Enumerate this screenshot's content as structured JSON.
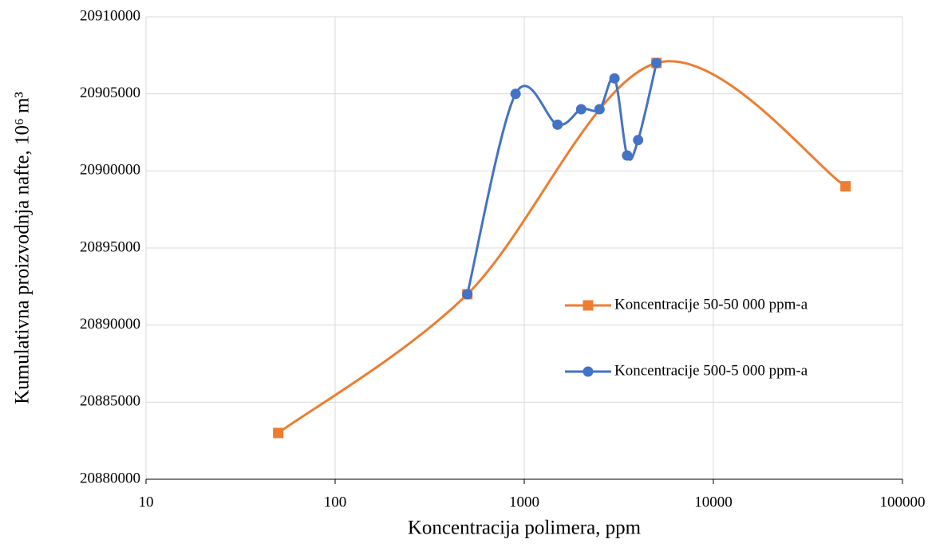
{
  "chart_data": {
    "type": "line",
    "x_label": "Koncentracija polimera, ppm",
    "y_label": "Kumulativna proizvodnja nafte, 10⁶ m³",
    "xscale": "log",
    "xlim": [
      10,
      100000
    ],
    "xticks": [
      10,
      100,
      1000,
      10000,
      100000
    ],
    "ylim": [
      20880000,
      20910000
    ],
    "yticks": [
      20880000,
      20885000,
      20890000,
      20895000,
      20900000,
      20905000,
      20910000
    ],
    "grid": true,
    "smooth": true,
    "legend": "right",
    "series": [
      {
        "name": "Koncentracije 50-50 000 ppm-a",
        "color": "#ed7d31",
        "marker": "square",
        "x": [
          50,
          500,
          5000,
          50000
        ],
        "values": [
          20883000,
          20892000,
          20907000,
          20899000
        ]
      },
      {
        "name": "Koncentracije 500-5 000 ppm-a",
        "color": "#4472c4",
        "marker": "circle",
        "x": [
          500,
          900,
          1500,
          2000,
          2500,
          3000,
          3500,
          4000,
          5000
        ],
        "values": [
          20892000,
          20905000,
          20903000,
          20904000,
          20904000,
          20906000,
          20901000,
          20902000,
          20907000
        ]
      }
    ]
  }
}
